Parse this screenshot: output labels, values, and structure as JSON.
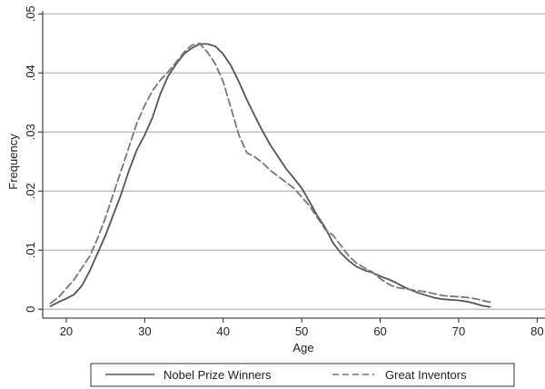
{
  "chart_data": {
    "type": "line",
    "xlabel": "Age",
    "ylabel": "Frequency",
    "xlim": [
      17,
      81
    ],
    "ylim": [
      -0.0015,
      0.0505
    ],
    "x_ticks": [
      {
        "value": 20,
        "label": "20"
      },
      {
        "value": 30,
        "label": "30"
      },
      {
        "value": 40,
        "label": "40"
      },
      {
        "value": 50,
        "label": "50"
      },
      {
        "value": 60,
        "label": "60"
      },
      {
        "value": 70,
        "label": "70"
      },
      {
        "value": 80,
        "label": "80"
      }
    ],
    "y_ticks": [
      {
        "value": 0,
        "label": "0"
      },
      {
        "value": 0.01,
        "label": ".01"
      },
      {
        "value": 0.02,
        "label": ".02"
      },
      {
        "value": 0.03,
        "label": ".03"
      },
      {
        "value": 0.04,
        "label": ".04"
      },
      {
        "value": 0.05,
        "label": ".05"
      }
    ],
    "grid": "horizontal",
    "legend_position": "bottom",
    "series": [
      {
        "name": "Nobel Prize Winners",
        "style": "solid",
        "color": "#555555",
        "points": [
          [
            18,
            0.0005
          ],
          [
            19,
            0.0012
          ],
          [
            20,
            0.0018
          ],
          [
            21,
            0.0025
          ],
          [
            22,
            0.004
          ],
          [
            23,
            0.0065
          ],
          [
            24,
            0.0095
          ],
          [
            25,
            0.0125
          ],
          [
            26,
            0.016
          ],
          [
            27,
            0.0195
          ],
          [
            28,
            0.0235
          ],
          [
            29,
            0.027
          ],
          [
            30,
            0.0295
          ],
          [
            31,
            0.0325
          ],
          [
            32,
            0.0365
          ],
          [
            33,
            0.0395
          ],
          [
            34,
            0.0415
          ],
          [
            35,
            0.0432
          ],
          [
            36,
            0.0442
          ],
          [
            37,
            0.0449
          ],
          [
            38,
            0.0449
          ],
          [
            39,
            0.0445
          ],
          [
            40,
            0.0432
          ],
          [
            41,
            0.0412
          ],
          [
            42,
            0.0385
          ],
          [
            43,
            0.0355
          ],
          [
            44,
            0.0328
          ],
          [
            45,
            0.0302
          ],
          [
            46,
            0.0278
          ],
          [
            47,
            0.0258
          ],
          [
            48,
            0.0238
          ],
          [
            49,
            0.0222
          ],
          [
            50,
            0.0205
          ],
          [
            51,
            0.0182
          ],
          [
            52,
            0.0158
          ],
          [
            53,
            0.0138
          ],
          [
            54,
            0.0112
          ],
          [
            55,
            0.0095
          ],
          [
            56,
            0.0082
          ],
          [
            57,
            0.0072
          ],
          [
            58,
            0.0066
          ],
          [
            59,
            0.0062
          ],
          [
            60,
            0.0056
          ],
          [
            61,
            0.0051
          ],
          [
            62,
            0.0045
          ],
          [
            63,
            0.0038
          ],
          [
            64,
            0.0032
          ],
          [
            65,
            0.0027
          ],
          [
            66,
            0.0023
          ],
          [
            67,
            0.0019
          ],
          [
            68,
            0.0017
          ],
          [
            69,
            0.0016
          ],
          [
            70,
            0.0015
          ],
          [
            71,
            0.0013
          ],
          [
            72,
            0.001
          ],
          [
            73,
            0.0006
          ],
          [
            74,
            0.0004
          ]
        ]
      },
      {
        "name": "Great Inventors",
        "style": "dashed",
        "color": "#777777",
        "points": [
          [
            18,
            0.001
          ],
          [
            19,
            0.002
          ],
          [
            20,
            0.0035
          ],
          [
            21,
            0.005
          ],
          [
            22,
            0.007
          ],
          [
            23,
            0.009
          ],
          [
            24,
            0.012
          ],
          [
            25,
            0.0155
          ],
          [
            26,
            0.0195
          ],
          [
            27,
            0.0235
          ],
          [
            28,
            0.0275
          ],
          [
            29,
            0.0315
          ],
          [
            30,
            0.0345
          ],
          [
            31,
            0.037
          ],
          [
            32,
            0.0388
          ],
          [
            33,
            0.0402
          ],
          [
            34,
            0.0418
          ],
          [
            35,
            0.0435
          ],
          [
            36,
            0.0447
          ],
          [
            37,
            0.045
          ],
          [
            38,
            0.0435
          ],
          [
            39,
            0.0415
          ],
          [
            40,
            0.0385
          ],
          [
            41,
            0.034
          ],
          [
            42,
            0.0295
          ],
          [
            43,
            0.0265
          ],
          [
            44,
            0.0258
          ],
          [
            45,
            0.0248
          ],
          [
            46,
            0.0235
          ],
          [
            47,
            0.0225
          ],
          [
            48,
            0.0215
          ],
          [
            49,
            0.0205
          ],
          [
            50,
            0.019
          ],
          [
            51,
            0.0175
          ],
          [
            52,
            0.0155
          ],
          [
            53,
            0.0135
          ],
          [
            54,
            0.0125
          ],
          [
            55,
            0.0108
          ],
          [
            56,
            0.009
          ],
          [
            57,
            0.0078
          ],
          [
            58,
            0.007
          ],
          [
            59,
            0.0063
          ],
          [
            60,
            0.0052
          ],
          [
            61,
            0.0043
          ],
          [
            62,
            0.0037
          ],
          [
            63,
            0.0035
          ],
          [
            64,
            0.0033
          ],
          [
            65,
            0.0031
          ],
          [
            66,
            0.0029
          ],
          [
            67,
            0.0026
          ],
          [
            68,
            0.0023
          ],
          [
            69,
            0.0022
          ],
          [
            70,
            0.0021
          ],
          [
            71,
            0.002
          ],
          [
            72,
            0.0018
          ],
          [
            73,
            0.0015
          ],
          [
            74,
            0.0012
          ]
        ]
      }
    ]
  }
}
